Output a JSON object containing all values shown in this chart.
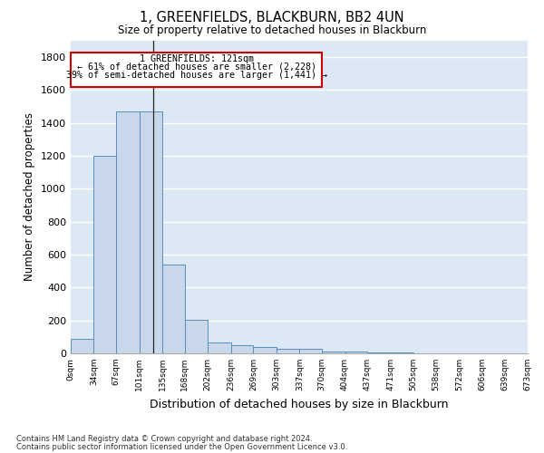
{
  "title": "1, GREENFIELDS, BLACKBURN, BB2 4UN",
  "subtitle": "Size of property relative to detached houses in Blackburn",
  "xlabel": "Distribution of detached houses by size in Blackburn",
  "ylabel": "Number of detached properties",
  "bar_color": "#c8d8ea",
  "bar_edge_color": "#5b8db8",
  "background_color": "#dce9f5",
  "grid_color": "#ffffff",
  "bins": [
    0,
    34,
    67,
    101,
    135,
    168,
    202,
    236,
    269,
    303,
    337,
    370,
    404,
    437,
    471,
    505,
    538,
    572,
    606,
    639,
    673
  ],
  "counts": [
    88,
    1200,
    1470,
    1470,
    540,
    205,
    65,
    47,
    38,
    28,
    28,
    10,
    10,
    5,
    5,
    2,
    2,
    1,
    1,
    0
  ],
  "ylim": [
    0,
    1900
  ],
  "yticks": [
    0,
    200,
    400,
    600,
    800,
    1000,
    1200,
    1400,
    1600,
    1800
  ],
  "annotation_line1": "1 GREENFIELDS: 121sqm",
  "annotation_line2": "← 61% of detached houses are smaller (2,228)",
  "annotation_line3": "39% of semi-detached houses are larger (1,441) →",
  "property_sqm": 121,
  "vline_x": 121,
  "footnote1": "Contains HM Land Registry data © Crown copyright and database right 2024.",
  "footnote2": "Contains public sector information licensed under the Open Government Licence v3.0."
}
